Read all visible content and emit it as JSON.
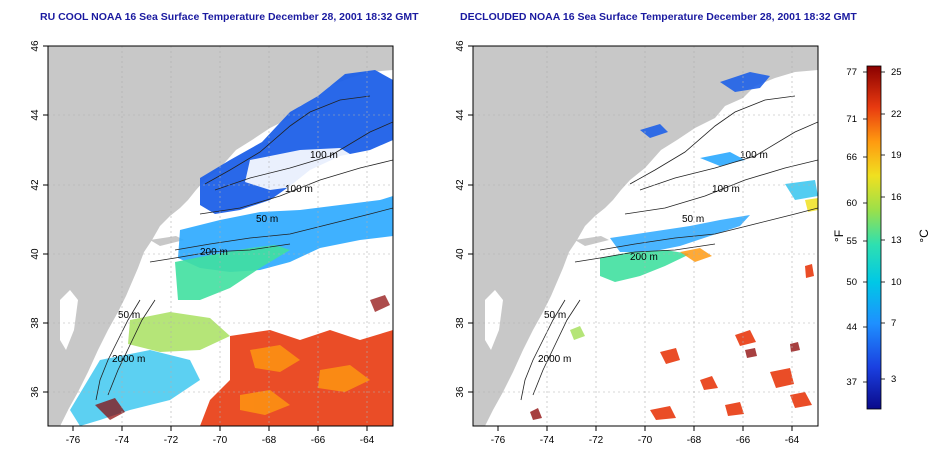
{
  "maps": [
    {
      "title": "RU COOL NOAA 16 Sea Surface Temperature December 28, 2001 18:32 GMT",
      "contours": [
        "100 m",
        "100 m",
        "50 m",
        "200 m",
        "50 m",
        "2000 m"
      ]
    },
    {
      "title": "DECLOUDED NOAA 16 Sea Surface Temperature December 28, 2001 18:32 GMT",
      "contours": [
        "100 m",
        "100 m",
        "50 m",
        "200 m",
        "50 m",
        "2000 m"
      ]
    }
  ],
  "axes": {
    "lon_ticks": [
      "-76",
      "-74",
      "-72",
      "-70",
      "-68",
      "-66",
      "-64"
    ],
    "lat_ticks": [
      "46",
      "44",
      "42",
      "40",
      "38",
      "36"
    ],
    "lon_range": [
      -77.5,
      -63
    ],
    "lat_range": [
      35,
      46
    ]
  },
  "colorbar": {
    "f_label": "°F",
    "c_label": "°C",
    "f_ticks": [
      "77",
      "71",
      "66",
      "60",
      "55",
      "50",
      "44",
      "37"
    ],
    "c_ticks": [
      "25",
      "22",
      "19",
      "16",
      "13",
      "10",
      "7",
      "3"
    ],
    "colors": [
      "#0a0a8a",
      "#1a3fe0",
      "#1e90ff",
      "#00c8e6",
      "#2ee0b0",
      "#9be04a",
      "#f0e020",
      "#ff9a10",
      "#e83a10",
      "#8a0000"
    ]
  },
  "colors": {
    "land": "#c8c8c8",
    "ocean": "#ffffff",
    "title": "#1a1aa0"
  }
}
